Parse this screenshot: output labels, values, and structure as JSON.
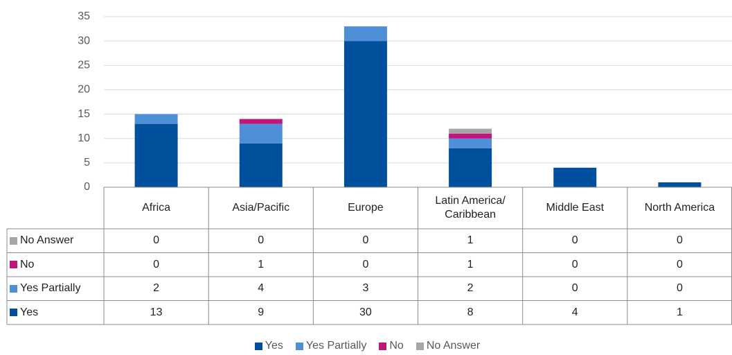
{
  "chart_data": {
    "type": "bar",
    "stacked": true,
    "categories": [
      "Africa",
      "Asia/Pacific",
      "Europe",
      "Latin America/ Caribbean",
      "Middle East",
      "North America"
    ],
    "series": [
      {
        "name": "Yes",
        "color": "#00509e",
        "values": [
          13,
          9,
          30,
          8,
          4,
          1
        ]
      },
      {
        "name": "Yes Partially",
        "color": "#4f8fd8",
        "values": [
          2,
          4,
          3,
          2,
          0,
          0
        ]
      },
      {
        "name": "No",
        "color": "#c0157a",
        "values": [
          0,
          1,
          0,
          1,
          0,
          0
        ]
      },
      {
        "name": "No Answer",
        "color": "#a6a6a6",
        "values": [
          0,
          0,
          0,
          1,
          0,
          0
        ]
      }
    ],
    "ylim": [
      0,
      35
    ],
    "yticks": [
      0,
      5,
      10,
      15,
      20,
      25,
      30,
      35
    ],
    "grid": true,
    "legend": "bottom",
    "data_table": true
  }
}
